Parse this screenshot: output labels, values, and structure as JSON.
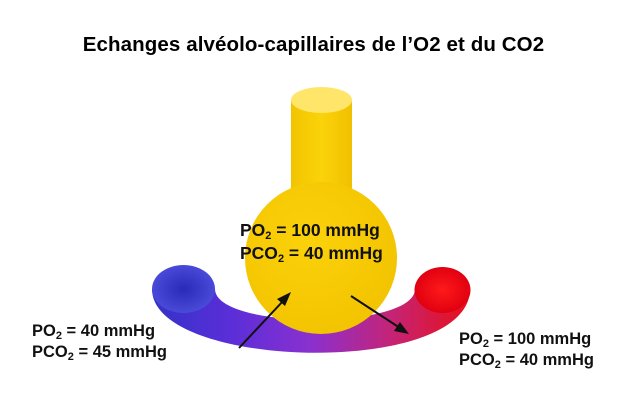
{
  "title": "Echanges alvéolo-capillaires de l’O2 et du CO2",
  "alveolus": {
    "po2_prefix": "PO",
    "po2_sub": "2",
    "po2_value": " = 100 mmHg",
    "pco2_prefix": "PCO",
    "pco2_sub": "2",
    "pco2_value": " = 40 mmHg"
  },
  "venous": {
    "po2_prefix": "PO",
    "po2_sub": "2",
    "po2_value": " = 40 mmHg",
    "pco2_prefix": "PCO",
    "pco2_sub": "2",
    "pco2_value": " = 45 mmHg"
  },
  "arterial": {
    "po2_prefix": "PO",
    "po2_sub": "2",
    "po2_value": " = 100 mmHg",
    "pco2_prefix": "PCO",
    "pco2_sub": "2",
    "pco2_value": " = 40 mmHg"
  },
  "colors": {
    "alveolus": "#f5c800",
    "venous_blood": "#3232c8",
    "mixed_blood": "#8a30d0",
    "arterial_blood": "#e81018",
    "arrow": "#111111"
  }
}
